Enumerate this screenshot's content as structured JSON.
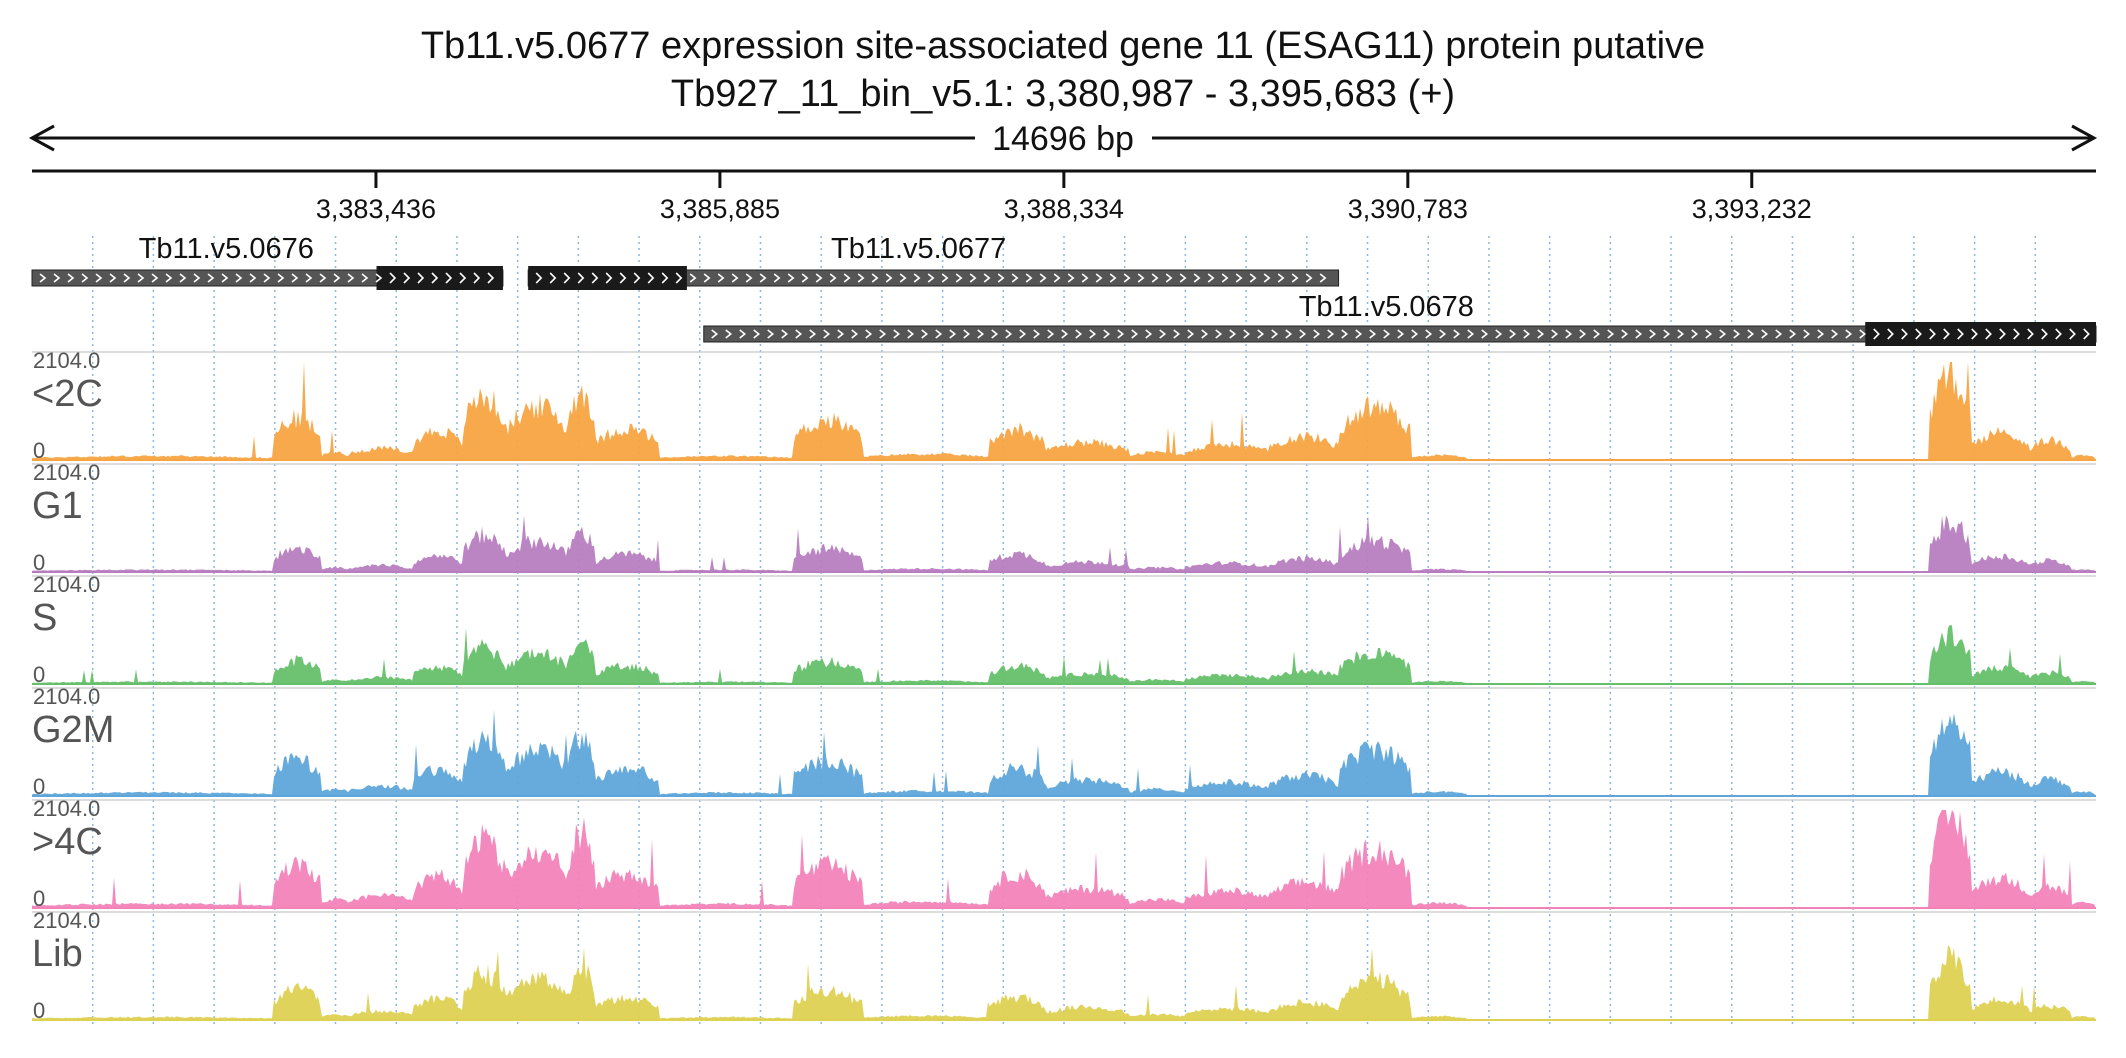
{
  "chart_data": {
    "type": "area",
    "title": "Tb11.v5.0677  expression site-associated gene 11 (ESAG11) protein  putative",
    "subtitle": "Tb927_11_bin_v5.1: 3,380,987 - 3,395,683 (+)",
    "span_label": "14696 bp",
    "xlim": [
      3380987,
      3395683
    ],
    "xticks": [
      {
        "value": 3383436,
        "label": "3,383,436"
      },
      {
        "value": 3385885,
        "label": "3,385,885"
      },
      {
        "value": 3388334,
        "label": "3,388,334"
      },
      {
        "value": 3390783,
        "label": "3,390,783"
      },
      {
        "value": 3393232,
        "label": "3,393,232"
      }
    ],
    "grid": true,
    "genes": [
      {
        "name": "Tb11.v5.0676",
        "start": 3380987,
        "end": 3384340,
        "cds_start": 3383440,
        "cds_end": 3384340,
        "row": 0,
        "label_pos": 3382370
      },
      {
        "name": "Tb11.v5.0677",
        "start": 3384520,
        "end": 3390290,
        "cds_start": 3384520,
        "cds_end": 3385650,
        "row": 0,
        "label_pos": 3387300
      },
      {
        "name": "Tb11.v5.0678",
        "start": 3385770,
        "end": 3395683,
        "cds_start": 3394040,
        "cds_end": 3395683,
        "row": 1,
        "label_pos": 3390630
      }
    ],
    "tracks": [
      {
        "name": "<2C",
        "color": "#f7a442",
        "ymax": "2104.0",
        "ymin": "0",
        "scale": 1.0
      },
      {
        "name": "G1",
        "color": "#b77dbf",
        "ymax": "2104.0",
        "ymin": "0",
        "scale": 0.36
      },
      {
        "name": "S",
        "color": "#66c06b",
        "ymax": "2104.0",
        "ymin": "0",
        "scale": 0.36
      },
      {
        "name": "G2M",
        "color": "#5ea6d9",
        "ymax": "2104.0",
        "ymin": "0",
        "scale": 0.55
      },
      {
        "name": ">4C",
        "color": "#f283b9",
        "ymax": "2104.0",
        "ymin": "0",
        "scale": 0.68
      },
      {
        "name": "Lib",
        "color": "#ded152",
        "ymax": "2104.0",
        "ymin": "0",
        "scale": 0.46
      }
    ],
    "coverage_profile": [
      {
        "s": 3380987,
        "e": 3382700,
        "v": 0.04
      },
      {
        "s": 3382700,
        "e": 3383050,
        "v": 0.42
      },
      {
        "s": 3383050,
        "e": 3383250,
        "v": 0.08
      },
      {
        "s": 3383250,
        "e": 3383700,
        "v": 0.12
      },
      {
        "s": 3383700,
        "e": 3384050,
        "v": 0.3
      },
      {
        "s": 3384050,
        "e": 3384360,
        "v": 0.65
      },
      {
        "s": 3384360,
        "e": 3384800,
        "v": 0.55
      },
      {
        "s": 3384800,
        "e": 3385000,
        "v": 0.7
      },
      {
        "s": 3385000,
        "e": 3385450,
        "v": 0.32
      },
      {
        "s": 3385450,
        "e": 3386400,
        "v": 0.04
      },
      {
        "s": 3386400,
        "e": 3386900,
        "v": 0.4
      },
      {
        "s": 3386900,
        "e": 3387800,
        "v": 0.06
      },
      {
        "s": 3387800,
        "e": 3388200,
        "v": 0.32
      },
      {
        "s": 3388200,
        "e": 3388800,
        "v": 0.18
      },
      {
        "s": 3388800,
        "e": 3389200,
        "v": 0.08
      },
      {
        "s": 3389200,
        "e": 3389800,
        "v": 0.16
      },
      {
        "s": 3389800,
        "e": 3390300,
        "v": 0.24
      },
      {
        "s": 3390300,
        "e": 3390800,
        "v": 0.55
      },
      {
        "s": 3390800,
        "e": 3391200,
        "v": 0.05
      },
      {
        "s": 3391200,
        "e": 3394500,
        "v": 0.0
      },
      {
        "s": 3394500,
        "e": 3394800,
        "v": 0.85
      },
      {
        "s": 3394800,
        "e": 3395200,
        "v": 0.28
      },
      {
        "s": 3395200,
        "e": 3395500,
        "v": 0.2
      },
      {
        "s": 3395500,
        "e": 3395683,
        "v": 0.05
      }
    ]
  }
}
